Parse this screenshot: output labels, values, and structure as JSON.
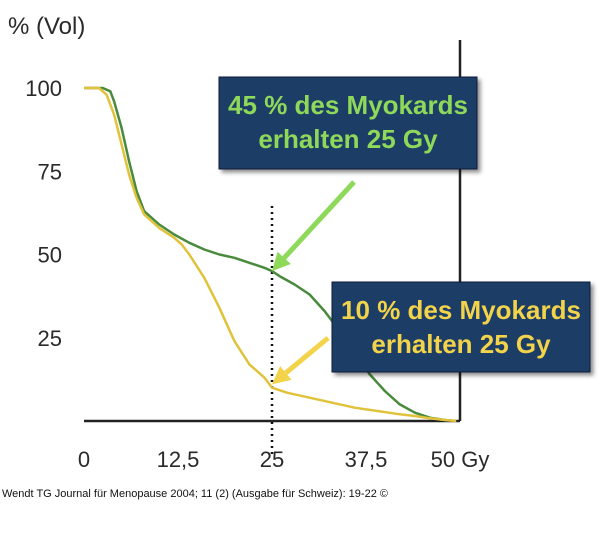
{
  "chart_data": {
    "type": "line",
    "ylabel": "% (Vol)",
    "x_ticks": [
      {
        "value": 0,
        "label": "0"
      },
      {
        "value": 12.5,
        "label": "12,5"
      },
      {
        "value": 25,
        "label": "25"
      },
      {
        "value": 37.5,
        "label": "37,5"
      },
      {
        "value": 50,
        "label": "50 Gy"
      }
    ],
    "y_ticks": [
      {
        "value": 100,
        "label": "100"
      },
      {
        "value": 75,
        "label": "75"
      },
      {
        "value": 50,
        "label": "50"
      },
      {
        "value": 25,
        "label": "25"
      }
    ],
    "xlim": [
      0,
      50
    ],
    "ylim": [
      0,
      100
    ],
    "grid": false,
    "reference_line_x": 25,
    "series": [
      {
        "color": "#4a8a3c",
        "x": [
          0,
          2.5,
          3.5,
          4,
          5,
          6,
          7,
          8,
          10,
          12,
          14,
          16,
          18,
          20,
          22,
          24,
          25,
          26,
          28,
          30,
          32,
          34,
          36,
          38,
          40,
          42,
          44,
          46,
          48,
          49.5
        ],
        "y": [
          100,
          100,
          99,
          96,
          88,
          78,
          69,
          63,
          59,
          56,
          53.5,
          51.5,
          50,
          49,
          47.5,
          46,
          45,
          43.5,
          41,
          38,
          33,
          27,
          21,
          14,
          9,
          5,
          2.5,
          1,
          0.3,
          0
        ]
      },
      {
        "color": "#e0c33a",
        "x": [
          0,
          2,
          3,
          4,
          5,
          6,
          7,
          8,
          10,
          12,
          13,
          14,
          16,
          18,
          20,
          22,
          24,
          25,
          27,
          30,
          33,
          36,
          39,
          42,
          44,
          46,
          48,
          49.5
        ],
        "y": [
          100,
          100,
          98,
          92,
          83,
          74,
          67,
          62,
          58,
          55,
          53,
          50,
          43,
          34,
          24,
          17,
          13,
          10,
          8.5,
          7,
          5.5,
          4,
          3,
          2,
          1.5,
          0.8,
          0.3,
          0
        ]
      }
    ],
    "annotations": [
      {
        "lines": [
          "45 % des Myokards",
          "erhalten 25 Gy"
        ],
        "box_color": "#1f3e66",
        "text_color": "#8ed85a",
        "point": [
          25,
          45
        ]
      },
      {
        "lines": [
          "10 % des Myokards",
          "erhalten 25 Gy"
        ],
        "box_color": "#1f3e66",
        "text_color": "#f2d34a",
        "point": [
          25,
          11
        ]
      }
    ]
  },
  "caption": "Wendt TG Journal für Menopause 2004; 11 (2) (Ausgabe für Schweiz): 19-22 ©"
}
